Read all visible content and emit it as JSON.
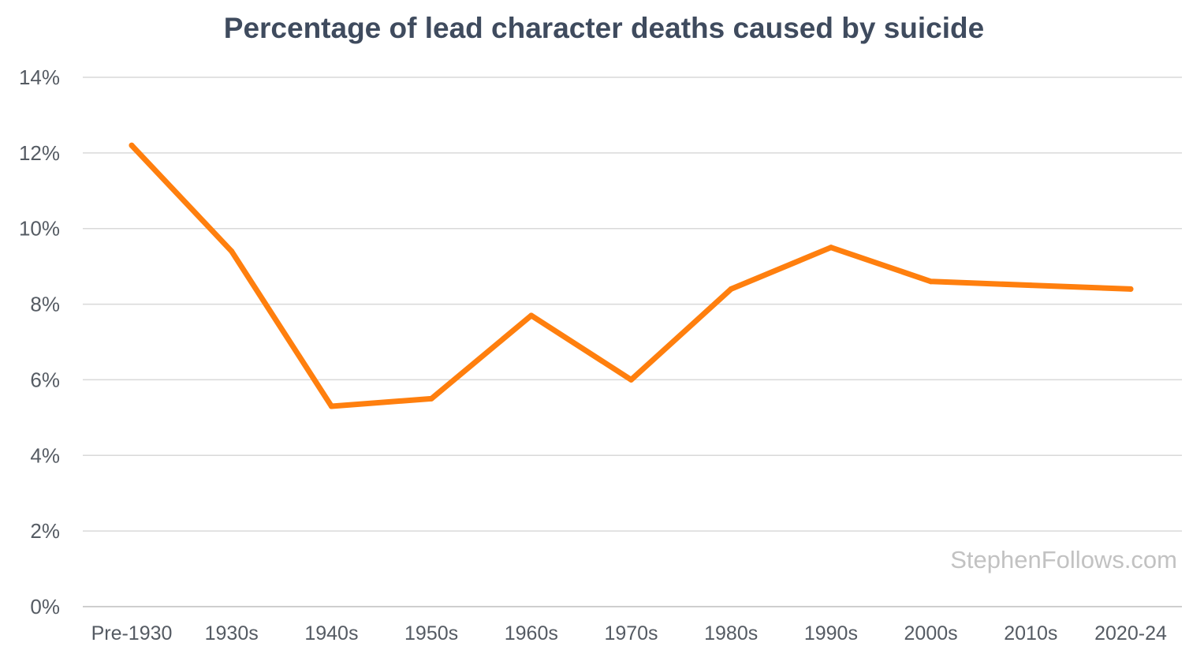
{
  "chart_data": {
    "type": "line",
    "title": "Percentage of lead character deaths caused by suicide",
    "xlabel": "",
    "ylabel": "",
    "categories": [
      "Pre-1930",
      "1930s",
      "1940s",
      "1950s",
      "1960s",
      "1970s",
      "1980s",
      "1990s",
      "2000s",
      "2010s",
      "2020-24"
    ],
    "series": [
      {
        "values": [
          12.2,
          9.4,
          5.3,
          5.5,
          7.7,
          6.0,
          8.4,
          9.5,
          8.6,
          8.5,
          8.4
        ],
        "color": "#ff7f0e"
      }
    ],
    "ylim": [
      0,
      14
    ],
    "yticks": [
      0,
      2,
      4,
      6,
      8,
      10,
      12,
      14
    ],
    "ytick_labels": [
      "0%",
      "2%",
      "4%",
      "6%",
      "8%",
      "10%",
      "12%",
      "14%"
    ],
    "grid": true,
    "legend": "none"
  },
  "watermark": "StephenFollows.com"
}
